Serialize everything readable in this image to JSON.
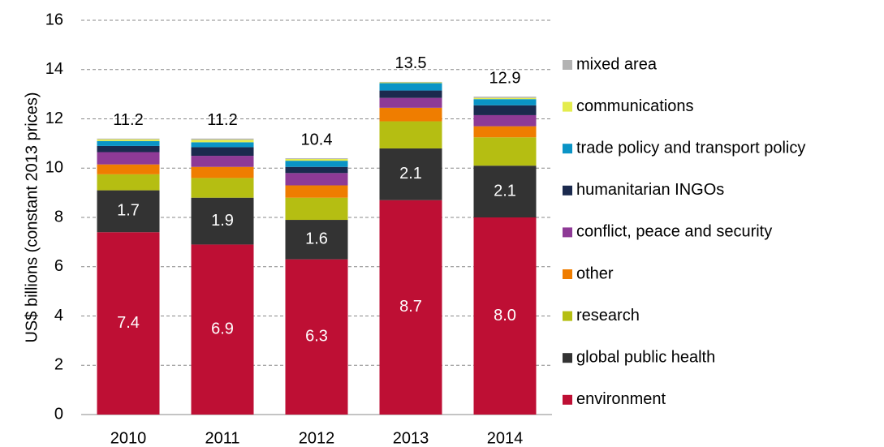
{
  "chart_data": {
    "type": "stacked_bar",
    "ylabel": "US$ billions (constant 2013 prices)",
    "categories": [
      "2010",
      "2011",
      "2012",
      "2013",
      "2014"
    ],
    "series": [
      {
        "name": "environment",
        "color": "#be0f34",
        "values": [
          7.4,
          6.9,
          6.3,
          8.7,
          8.0
        ],
        "value_labels": [
          "7.4",
          "6.9",
          "6.3",
          "8.7",
          "8.0"
        ]
      },
      {
        "name": "global public health",
        "color": "#333333",
        "values": [
          1.7,
          1.9,
          1.6,
          2.1,
          2.1
        ],
        "value_labels": [
          "1.7",
          "1.9",
          "1.6",
          "2.1",
          "2.1"
        ]
      },
      {
        "name": "research",
        "color": "#b5be12",
        "values": [
          0.65,
          0.8,
          0.9,
          1.1,
          1.15
        ]
      },
      {
        "name": "other",
        "color": "#ef7d00",
        "values": [
          0.4,
          0.45,
          0.5,
          0.55,
          0.45
        ]
      },
      {
        "name": "conflict, peace and security",
        "color": "#8e3a96",
        "values": [
          0.5,
          0.45,
          0.5,
          0.4,
          0.45
        ]
      },
      {
        "name": "humanitarian INGOs",
        "color": "#1b2a4e",
        "values": [
          0.25,
          0.35,
          0.25,
          0.3,
          0.4
        ]
      },
      {
        "name": "trade policy and transport policy",
        "color": "#0a94c6",
        "values": [
          0.2,
          0.2,
          0.25,
          0.3,
          0.25
        ]
      },
      {
        "name": "communications",
        "color": "#e4ec4e",
        "values": [
          0.07,
          0.1,
          0.07,
          0.03,
          0.05
        ]
      },
      {
        "name": "mixed area",
        "color": "#b3b3b3",
        "values": [
          0.03,
          0.05,
          0.03,
          0.02,
          0.05
        ]
      }
    ],
    "totals": [
      11.2,
      11.2,
      10.4,
      13.5,
      12.9
    ],
    "ylim": [
      0,
      16
    ],
    "yticks": [
      0,
      2,
      4,
      6,
      8,
      10,
      12,
      14,
      16
    ],
    "grid": true,
    "legend": "right"
  }
}
